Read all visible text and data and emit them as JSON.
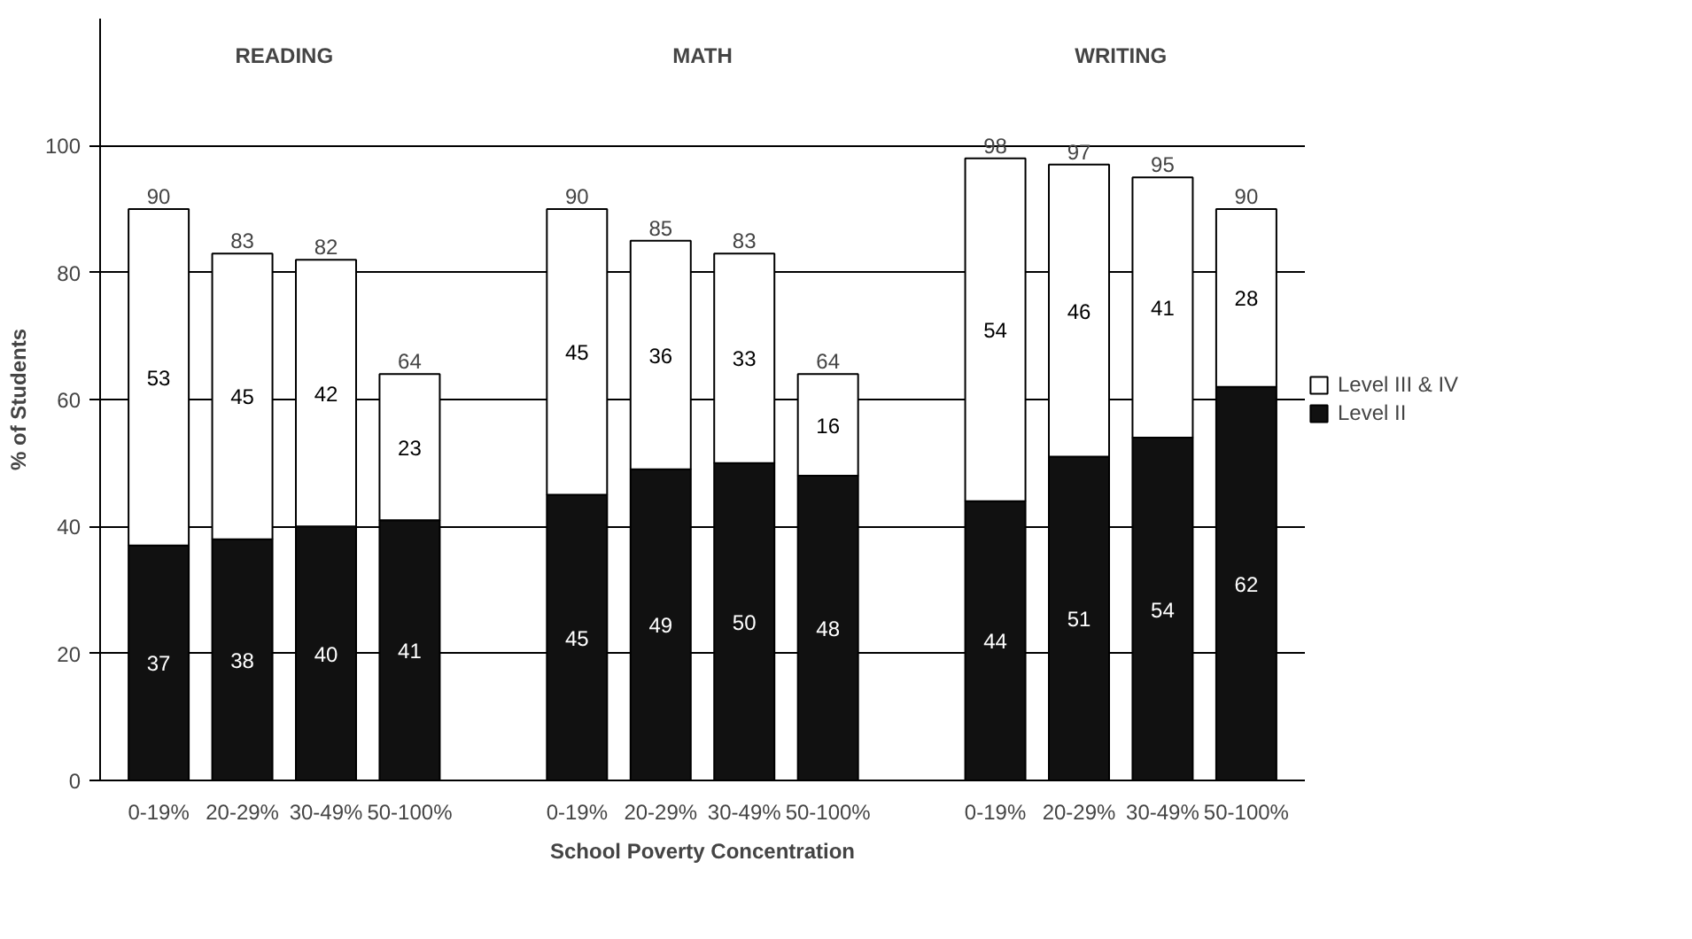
{
  "chart_data": {
    "type": "bar",
    "stacked": true,
    "xlabel": "School Poverty Concentration",
    "ylabel": "% of Students",
    "categories": [
      "0-19%",
      "20-29%",
      "30-49%",
      "50-100%",
      null,
      "0-19%",
      "20-29%",
      "30-49%",
      "50-100%",
      null,
      "0-19%",
      "20-29%",
      "30-49%",
      "50-100%"
    ],
    "series": [
      {
        "name": "Level II",
        "color": "#111111",
        "values": [
          37,
          38,
          40,
          41,
          null,
          45,
          49,
          50,
          48,
          null,
          44,
          51,
          54,
          62
        ]
      },
      {
        "name": "Level III & IV",
        "color": "#ffffff",
        "values": [
          53,
          45,
          42,
          23,
          null,
          45,
          36,
          33,
          16,
          null,
          54,
          46,
          41,
          28
        ]
      }
    ],
    "totals": [
      "90",
      "83",
      "82",
      "64",
      null,
      "90",
      "85",
      "83",
      "64",
      null,
      "98",
      "97",
      "95",
      "90"
    ],
    "annotations": [
      "READING",
      "MATH",
      "WRITING"
    ],
    "data_labels": true,
    "ylim": [
      0,
      120
    ],
    "yticks": [
      0,
      20,
      40,
      60,
      80,
      100
    ],
    "grid": "y",
    "legend": "right"
  }
}
